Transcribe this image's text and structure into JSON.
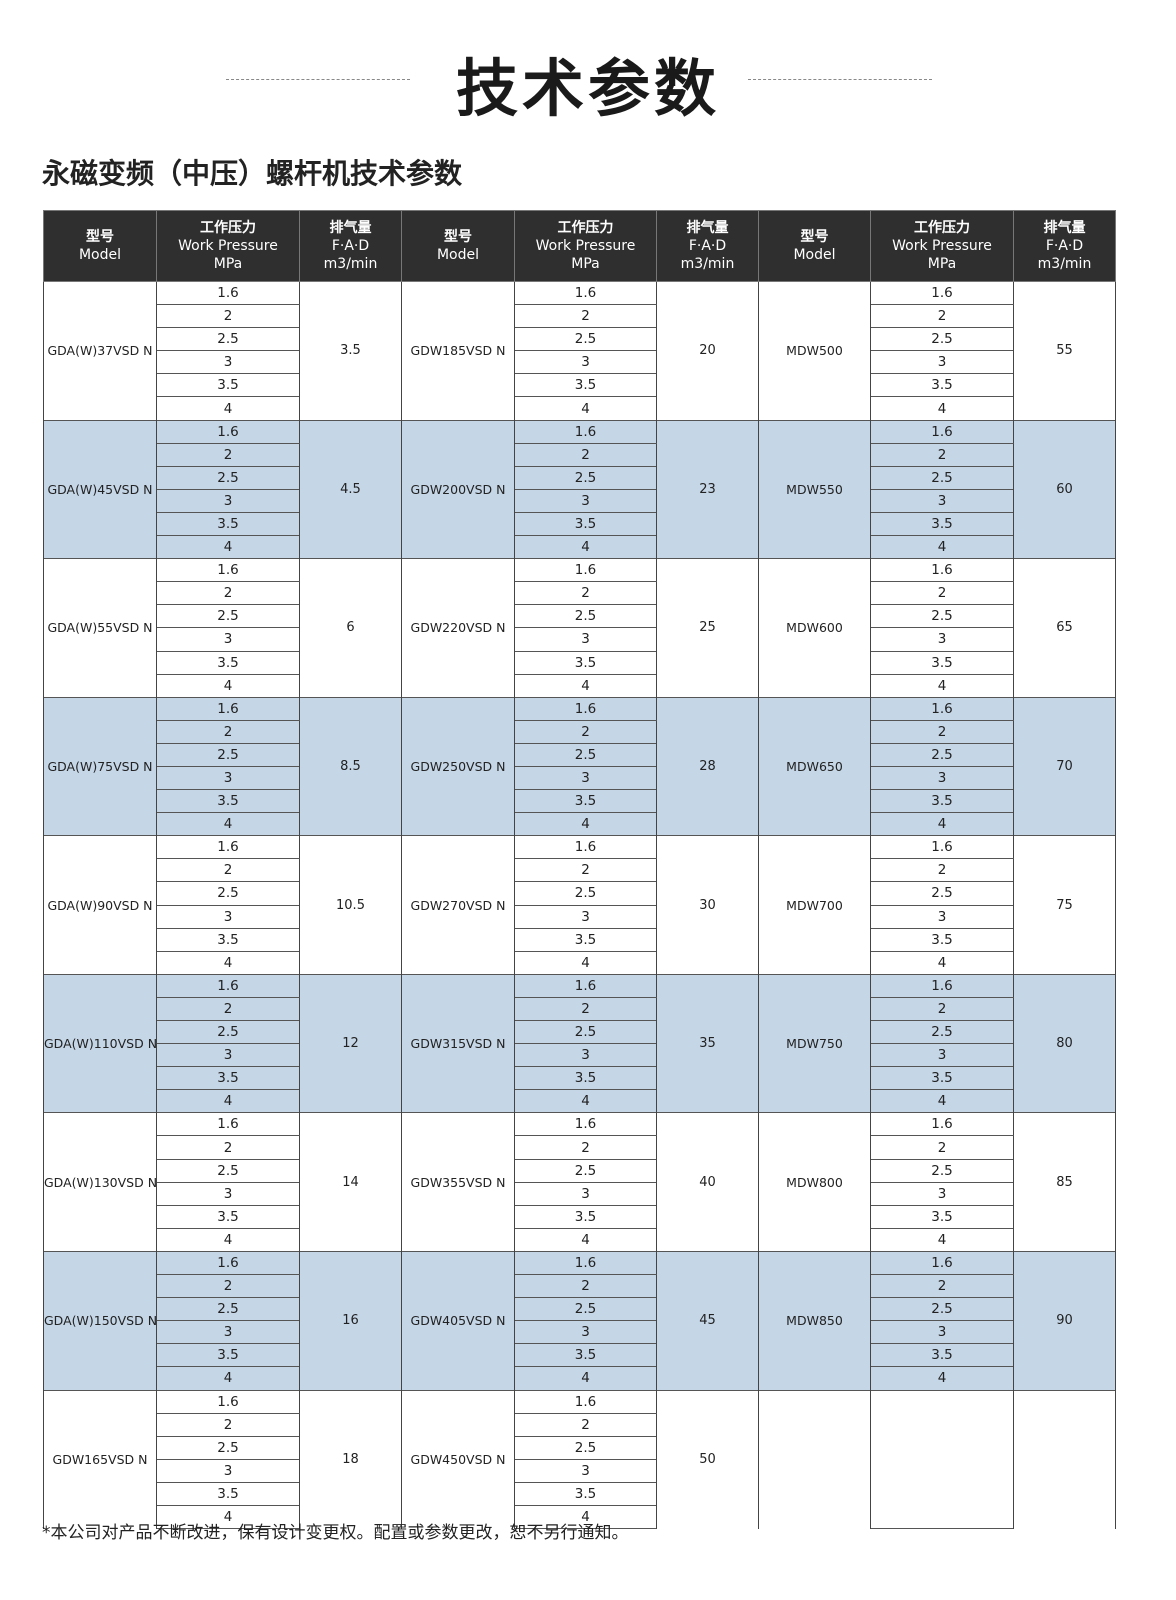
{
  "title": "技术参数",
  "subtitle": "永磁变频（中压）螺杆机技术参数",
  "header": {
    "model_cn": "型号",
    "model_en": "Model",
    "pressure_cn": "工作压力",
    "pressure_en": "Work Pressure",
    "pressure_unit": "MPa",
    "fad_cn": "排气量",
    "fad_en": "F·A·D",
    "fad_unit": "m3/min"
  },
  "pressures": [
    "1.6",
    "2",
    "2.5",
    "3",
    "3.5",
    "4"
  ],
  "groups": [
    [
      {
        "model": "GDA(W)37VSD N",
        "fad": "3.5"
      },
      {
        "model": "GDW185VSD N",
        "fad": "20"
      },
      {
        "model": "MDW500",
        "fad": "55"
      }
    ],
    [
      {
        "model": "GDA(W)45VSD N",
        "fad": "4.5"
      },
      {
        "model": "GDW200VSD N",
        "fad": "23"
      },
      {
        "model": "MDW550",
        "fad": "60"
      }
    ],
    [
      {
        "model": "GDA(W)55VSD N",
        "fad": "6"
      },
      {
        "model": "GDW220VSD N",
        "fad": "25"
      },
      {
        "model": "MDW600",
        "fad": "65"
      }
    ],
    [
      {
        "model": "GDA(W)75VSD N",
        "fad": "8.5"
      },
      {
        "model": "GDW250VSD N",
        "fad": "28"
      },
      {
        "model": "MDW650",
        "fad": "70"
      }
    ],
    [
      {
        "model": "GDA(W)90VSD N",
        "fad": "10.5"
      },
      {
        "model": "GDW270VSD N",
        "fad": "30"
      },
      {
        "model": "MDW700",
        "fad": "75"
      }
    ],
    [
      {
        "model": "GDA(W)110VSD N",
        "fad": "12"
      },
      {
        "model": "GDW315VSD N",
        "fad": "35"
      },
      {
        "model": "MDW750",
        "fad": "80"
      }
    ],
    [
      {
        "model": "GDA(W)130VSD N",
        "fad": "14"
      },
      {
        "model": "GDW355VSD N",
        "fad": "40"
      },
      {
        "model": "MDW800",
        "fad": "85"
      }
    ],
    [
      {
        "model": "GDA(W)150VSD N",
        "fad": "16"
      },
      {
        "model": "GDW405VSD N",
        "fad": "45"
      },
      {
        "model": "MDW850",
        "fad": "90"
      }
    ],
    [
      {
        "model": "GDW165VSD N",
        "fad": "18"
      },
      {
        "model": "GDW450VSD N",
        "fad": "50"
      },
      null
    ]
  ],
  "colors": {
    "header_bg": "#2f2f2f",
    "band_bg": "#c5d6e7"
  },
  "footer": "*本公司对产品不断改进，保有设计变更权。配置或参数更改，恕不另行通知。"
}
